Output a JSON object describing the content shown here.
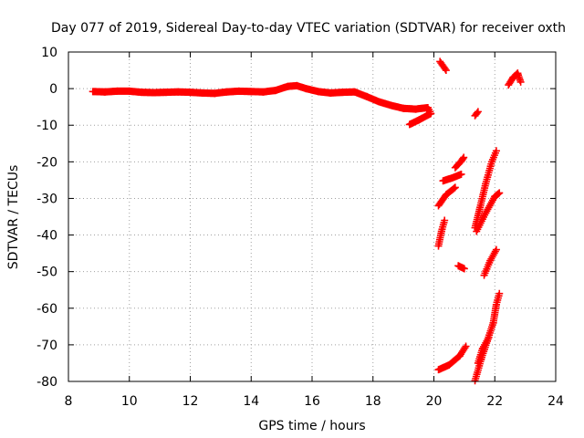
{
  "chart_data": {
    "type": "scatter",
    "title": "Day 077 of 2019, Sidereal Day-to-day VTEC variation (SDTVAR) for receiver oxth",
    "xlabel": "GPS time / hours",
    "ylabel": "SDTVAR / TECUs",
    "xlim": [
      8,
      24
    ],
    "ylim": [
      -80,
      10
    ],
    "x_ticks": [
      8,
      10,
      12,
      14,
      16,
      18,
      20,
      22,
      24
    ],
    "y_ticks": [
      10,
      0,
      -10,
      -20,
      -30,
      -40,
      -50,
      -60,
      -70,
      -80
    ],
    "grid": true,
    "marker": "+",
    "color": "#ff0000",
    "series": [
      {
        "name": "main-track",
        "points": [
          [
            8.8,
            -0.8
          ],
          [
            9.2,
            -0.9
          ],
          [
            9.6,
            -0.7
          ],
          [
            10.0,
            -0.7
          ],
          [
            10.4,
            -1.0
          ],
          [
            10.8,
            -1.1
          ],
          [
            11.2,
            -1.0
          ],
          [
            11.6,
            -0.9
          ],
          [
            12.0,
            -1.0
          ],
          [
            12.4,
            -1.2
          ],
          [
            12.8,
            -1.3
          ],
          [
            13.2,
            -0.9
          ],
          [
            13.6,
            -0.7
          ],
          [
            14.0,
            -0.8
          ],
          [
            14.4,
            -0.9
          ],
          [
            14.8,
            -0.5
          ],
          [
            15.2,
            0.6
          ],
          [
            15.5,
            0.8
          ],
          [
            15.8,
            0.0
          ],
          [
            16.2,
            -0.8
          ],
          [
            16.6,
            -1.2
          ],
          [
            17.0,
            -1.0
          ],
          [
            17.4,
            -0.9
          ],
          [
            17.8,
            -2.2
          ],
          [
            18.2,
            -3.6
          ],
          [
            18.6,
            -4.6
          ],
          [
            19.0,
            -5.4
          ],
          [
            19.4,
            -5.6
          ],
          [
            19.8,
            -5.2
          ],
          [
            19.9,
            -6.8
          ],
          [
            19.5,
            -8.6
          ],
          [
            19.2,
            -9.8
          ]
        ]
      },
      {
        "name": "seg-20.2-a",
        "points": [
          [
            20.2,
            7.4
          ],
          [
            20.4,
            5.0
          ]
        ]
      },
      {
        "name": "seg-21.4-small",
        "points": [
          [
            21.35,
            -7.4
          ],
          [
            21.45,
            -6.3
          ]
        ]
      },
      {
        "name": "seg-22.5-top",
        "points": [
          [
            22.45,
            1.0
          ],
          [
            22.6,
            3.0
          ],
          [
            22.75,
            4.2
          ],
          [
            22.85,
            1.8
          ]
        ]
      },
      {
        "name": "seg-20.8-upper",
        "points": [
          [
            20.7,
            -21.6
          ],
          [
            20.9,
            -19.8
          ],
          [
            20.98,
            -18.8
          ]
        ]
      },
      {
        "name": "seg-20.3-mid",
        "points": [
          [
            20.3,
            -25.2
          ],
          [
            20.6,
            -24.4
          ],
          [
            20.9,
            -23.4
          ]
        ]
      },
      {
        "name": "seg-20.2-lower",
        "points": [
          [
            20.15,
            -32.0
          ],
          [
            20.4,
            -29.0
          ],
          [
            20.7,
            -27.0
          ]
        ]
      },
      {
        "name": "seg-20.1-deep",
        "points": [
          [
            20.15,
            -43.0
          ],
          [
            20.25,
            -39.0
          ],
          [
            20.35,
            -36.0
          ]
        ]
      },
      {
        "name": "seg-21.3-long",
        "points": [
          [
            21.35,
            -38.0
          ],
          [
            21.5,
            -33.0
          ],
          [
            21.7,
            -26.0
          ],
          [
            21.9,
            -20.0
          ],
          [
            22.05,
            -17.0
          ]
        ]
      },
      {
        "name": "seg-21.5-mid",
        "points": [
          [
            21.4,
            -39.0
          ],
          [
            21.7,
            -34.0
          ],
          [
            22.0,
            -29.5
          ],
          [
            22.15,
            -28.5
          ]
        ]
      },
      {
        "name": "seg-21.0-dot",
        "points": [
          [
            20.8,
            -48.4
          ],
          [
            21.0,
            -49.2
          ]
        ]
      },
      {
        "name": "seg-21.7-rise",
        "points": [
          [
            21.65,
            -51.0
          ],
          [
            21.85,
            -47.0
          ],
          [
            22.05,
            -44.0
          ]
        ]
      },
      {
        "name": "seg-21.3-lower",
        "points": [
          [
            21.35,
            -79.8
          ],
          [
            21.55,
            -74.0
          ],
          [
            21.75,
            -69.0
          ],
          [
            21.95,
            -64.0
          ],
          [
            22.05,
            -59.0
          ],
          [
            22.15,
            -56.0
          ]
        ]
      },
      {
        "name": "seg-21.5-parallel",
        "points": [
          [
            21.45,
            -75.0
          ],
          [
            21.6,
            -71.0
          ],
          [
            21.8,
            -68.0
          ]
        ]
      },
      {
        "name": "seg-20.2-bottom",
        "points": [
          [
            20.15,
            -76.8
          ],
          [
            20.5,
            -75.5
          ],
          [
            20.85,
            -73.0
          ],
          [
            21.05,
            -70.4
          ]
        ]
      }
    ]
  }
}
